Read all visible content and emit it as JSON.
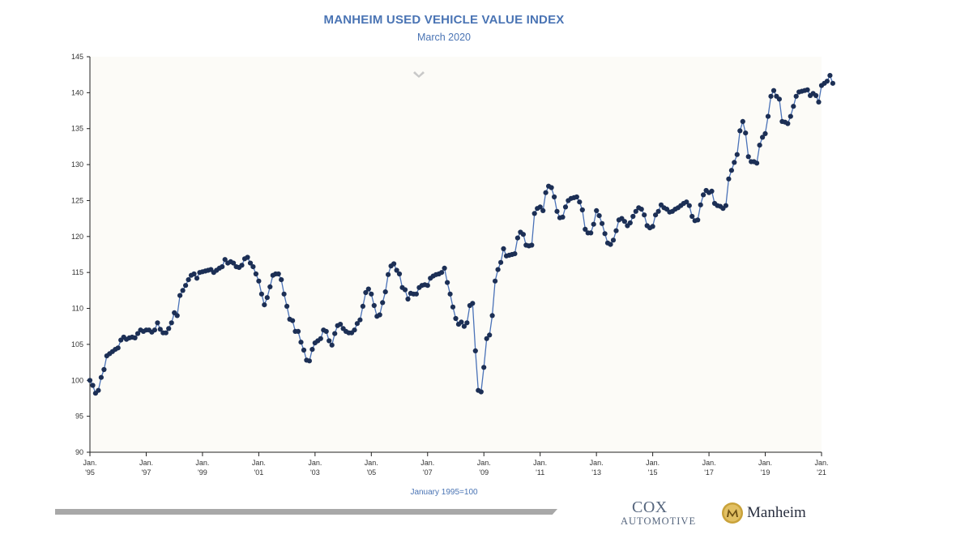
{
  "chart_data": {
    "type": "line",
    "title": "MANHEIM USED VEHICLE VALUE INDEX",
    "subtitle": "March 2020",
    "note": "January 1995=100",
    "ylim": [
      90,
      145
    ],
    "yticks": [
      90,
      95,
      100,
      105,
      110,
      115,
      120,
      125,
      130,
      135,
      140,
      145
    ],
    "xlim": [
      1995,
      2021
    ],
    "xticks": [
      {
        "year": 1995,
        "line1": "Jan.",
        "line2": "'95"
      },
      {
        "year": 1997,
        "line1": "Jan.",
        "line2": "'97"
      },
      {
        "year": 1999,
        "line1": "Jan.",
        "line2": "'99"
      },
      {
        "year": 2001,
        "line1": "Jan.",
        "line2": "'01"
      },
      {
        "year": 2003,
        "line1": "Jan.",
        "line2": "'03"
      },
      {
        "year": 2005,
        "line1": "Jan.",
        "line2": "'05"
      },
      {
        "year": 2007,
        "line1": "Jan.",
        "line2": "'07"
      },
      {
        "year": 2009,
        "line1": "Jan.",
        "line2": "'09"
      },
      {
        "year": 2011,
        "line1": "Jan.",
        "line2": "'11"
      },
      {
        "year": 2013,
        "line1": "Jan.",
        "line2": "'13"
      },
      {
        "year": 2015,
        "line1": "Jan.",
        "line2": "'15"
      },
      {
        "year": 2017,
        "line1": "Jan.",
        "line2": "'17"
      },
      {
        "year": 2019,
        "line1": "Jan.",
        "line2": "'19"
      },
      {
        "year": 2021,
        "line1": "Jan.",
        "line2": "'21"
      }
    ],
    "line_color": "#4a72b8",
    "marker_color": "#1c2f55",
    "grid": false,
    "series": [
      {
        "points": [
          [
            1995.0,
            100.0
          ],
          [
            1995.1,
            99.3
          ],
          [
            1995.2,
            98.2
          ],
          [
            1995.3,
            98.6
          ],
          [
            1995.4,
            100.4
          ],
          [
            1995.5,
            101.5
          ],
          [
            1995.6,
            103.4
          ],
          [
            1995.7,
            103.7
          ],
          [
            1995.8,
            104.0
          ],
          [
            1995.9,
            104.3
          ],
          [
            1996.0,
            104.5
          ],
          [
            1996.1,
            105.6
          ],
          [
            1996.2,
            106.0
          ],
          [
            1996.3,
            105.7
          ],
          [
            1996.4,
            105.9
          ],
          [
            1996.5,
            106.0
          ],
          [
            1996.6,
            105.9
          ],
          [
            1996.7,
            106.5
          ],
          [
            1996.8,
            107.0
          ],
          [
            1996.9,
            106.8
          ],
          [
            1997.0,
            107.0
          ],
          [
            1997.1,
            107.0
          ],
          [
            1997.2,
            106.7
          ],
          [
            1997.3,
            107.0
          ],
          [
            1997.4,
            108.0
          ],
          [
            1997.5,
            107.1
          ],
          [
            1997.6,
            106.6
          ],
          [
            1997.7,
            106.6
          ],
          [
            1997.8,
            107.2
          ],
          [
            1997.9,
            108.0
          ],
          [
            1998.0,
            109.4
          ],
          [
            1998.1,
            109.0
          ],
          [
            1998.2,
            111.8
          ],
          [
            1998.3,
            112.5
          ],
          [
            1998.4,
            113.2
          ],
          [
            1998.5,
            114.0
          ],
          [
            1998.6,
            114.6
          ],
          [
            1998.7,
            114.8
          ],
          [
            1998.8,
            114.2
          ],
          [
            1998.9,
            115.0
          ],
          [
            1999.0,
            115.1
          ],
          [
            1999.1,
            115.2
          ],
          [
            1999.2,
            115.3
          ],
          [
            1999.3,
            115.4
          ],
          [
            1999.4,
            115.0
          ],
          [
            1999.5,
            115.3
          ],
          [
            1999.6,
            115.6
          ],
          [
            1999.7,
            115.8
          ],
          [
            1999.8,
            116.8
          ],
          [
            1999.9,
            116.3
          ],
          [
            2000.0,
            116.5
          ],
          [
            2000.1,
            116.3
          ],
          [
            2000.2,
            115.8
          ],
          [
            2000.3,
            115.7
          ],
          [
            2000.4,
            116.0
          ],
          [
            2000.5,
            116.9
          ],
          [
            2000.6,
            117.1
          ],
          [
            2000.7,
            116.3
          ],
          [
            2000.8,
            115.8
          ],
          [
            2000.9,
            114.8
          ],
          [
            2001.0,
            113.8
          ],
          [
            2001.1,
            112.0
          ],
          [
            2001.2,
            110.5
          ],
          [
            2001.3,
            111.5
          ],
          [
            2001.4,
            113.0
          ],
          [
            2001.5,
            114.6
          ],
          [
            2001.6,
            114.8
          ],
          [
            2001.7,
            114.8
          ],
          [
            2001.8,
            114.0
          ],
          [
            2001.9,
            112.0
          ],
          [
            2002.0,
            110.3
          ],
          [
            2002.1,
            108.5
          ],
          [
            2002.2,
            108.3
          ],
          [
            2002.3,
            106.8
          ],
          [
            2002.4,
            106.8
          ],
          [
            2002.5,
            105.3
          ],
          [
            2002.6,
            104.2
          ],
          [
            2002.7,
            102.8
          ],
          [
            2002.8,
            102.7
          ],
          [
            2002.9,
            104.3
          ],
          [
            2003.0,
            105.2
          ],
          [
            2003.1,
            105.5
          ],
          [
            2003.2,
            105.8
          ],
          [
            2003.3,
            107.0
          ],
          [
            2003.4,
            106.8
          ],
          [
            2003.5,
            105.5
          ],
          [
            2003.6,
            104.9
          ],
          [
            2003.7,
            106.5
          ],
          [
            2003.8,
            107.6
          ],
          [
            2003.9,
            107.8
          ],
          [
            2004.0,
            107.2
          ],
          [
            2004.1,
            106.8
          ],
          [
            2004.2,
            106.6
          ],
          [
            2004.3,
            106.6
          ],
          [
            2004.4,
            107.0
          ],
          [
            2004.5,
            107.9
          ],
          [
            2004.6,
            108.4
          ],
          [
            2004.7,
            110.3
          ],
          [
            2004.8,
            112.2
          ],
          [
            2004.9,
            112.7
          ],
          [
            2005.0,
            112.0
          ],
          [
            2005.1,
            110.4
          ],
          [
            2005.2,
            108.9
          ],
          [
            2005.3,
            109.1
          ],
          [
            2005.4,
            110.8
          ],
          [
            2005.5,
            112.3
          ],
          [
            2005.6,
            114.7
          ],
          [
            2005.7,
            115.9
          ],
          [
            2005.8,
            116.2
          ],
          [
            2005.9,
            115.3
          ],
          [
            2006.0,
            114.8
          ],
          [
            2006.1,
            112.9
          ],
          [
            2006.2,
            112.6
          ],
          [
            2006.3,
            111.3
          ],
          [
            2006.4,
            112.1
          ],
          [
            2006.5,
            112.0
          ],
          [
            2006.6,
            112.0
          ],
          [
            2006.7,
            112.9
          ],
          [
            2006.8,
            113.2
          ],
          [
            2006.9,
            113.3
          ],
          [
            2007.0,
            113.2
          ],
          [
            2007.1,
            114.2
          ],
          [
            2007.2,
            114.5
          ],
          [
            2007.3,
            114.7
          ],
          [
            2007.4,
            114.8
          ],
          [
            2007.5,
            115.0
          ],
          [
            2007.6,
            115.6
          ],
          [
            2007.7,
            113.6
          ],
          [
            2007.8,
            112.0
          ],
          [
            2007.9,
            110.2
          ],
          [
            2008.0,
            108.6
          ],
          [
            2008.1,
            107.8
          ],
          [
            2008.2,
            108.1
          ],
          [
            2008.3,
            107.5
          ],
          [
            2008.4,
            108.0
          ],
          [
            2008.5,
            110.4
          ],
          [
            2008.6,
            110.7
          ],
          [
            2008.7,
            104.1
          ],
          [
            2008.8,
            98.6
          ],
          [
            2008.9,
            98.4
          ],
          [
            2009.0,
            101.8
          ],
          [
            2009.1,
            105.8
          ],
          [
            2009.2,
            106.3
          ],
          [
            2009.3,
            109.0
          ],
          [
            2009.4,
            113.8
          ],
          [
            2009.5,
            115.4
          ],
          [
            2009.6,
            116.4
          ],
          [
            2009.7,
            118.3
          ],
          [
            2009.8,
            117.3
          ],
          [
            2009.9,
            117.4
          ],
          [
            2010.0,
            117.5
          ],
          [
            2010.1,
            117.6
          ],
          [
            2010.2,
            119.8
          ],
          [
            2010.3,
            120.6
          ],
          [
            2010.4,
            120.3
          ],
          [
            2010.5,
            118.8
          ],
          [
            2010.6,
            118.7
          ],
          [
            2010.7,
            118.8
          ],
          [
            2010.8,
            123.2
          ],
          [
            2010.9,
            123.9
          ],
          [
            2011.0,
            124.1
          ],
          [
            2011.1,
            123.6
          ],
          [
            2011.2,
            126.1
          ],
          [
            2011.3,
            127.0
          ],
          [
            2011.4,
            126.8
          ],
          [
            2011.5,
            125.5
          ],
          [
            2011.6,
            123.5
          ],
          [
            2011.7,
            122.6
          ],
          [
            2011.8,
            122.7
          ],
          [
            2011.9,
            124.1
          ],
          [
            2012.0,
            125.0
          ],
          [
            2012.1,
            125.3
          ],
          [
            2012.2,
            125.4
          ],
          [
            2012.3,
            125.5
          ],
          [
            2012.4,
            124.8
          ],
          [
            2012.5,
            123.7
          ],
          [
            2012.6,
            121.0
          ],
          [
            2012.7,
            120.5
          ],
          [
            2012.8,
            120.5
          ],
          [
            2012.9,
            121.7
          ],
          [
            2013.0,
            123.6
          ],
          [
            2013.1,
            122.9
          ],
          [
            2013.2,
            121.8
          ],
          [
            2013.3,
            120.4
          ],
          [
            2013.4,
            119.1
          ],
          [
            2013.5,
            118.9
          ],
          [
            2013.6,
            119.5
          ],
          [
            2013.7,
            120.8
          ],
          [
            2013.8,
            122.3
          ],
          [
            2013.9,
            122.5
          ],
          [
            2014.0,
            122.1
          ],
          [
            2014.1,
            121.5
          ],
          [
            2014.2,
            121.9
          ],
          [
            2014.3,
            122.8
          ],
          [
            2014.4,
            123.5
          ],
          [
            2014.5,
            124.0
          ],
          [
            2014.6,
            123.8
          ],
          [
            2014.7,
            123.0
          ],
          [
            2014.8,
            121.5
          ],
          [
            2014.9,
            121.2
          ],
          [
            2015.0,
            121.4
          ],
          [
            2015.1,
            123.0
          ],
          [
            2015.2,
            123.5
          ],
          [
            2015.3,
            124.4
          ],
          [
            2015.4,
            124.0
          ],
          [
            2015.5,
            123.8
          ],
          [
            2015.6,
            123.4
          ],
          [
            2015.7,
            123.5
          ],
          [
            2015.8,
            123.8
          ],
          [
            2015.9,
            124.0
          ],
          [
            2016.0,
            124.3
          ],
          [
            2016.1,
            124.6
          ],
          [
            2016.2,
            124.8
          ],
          [
            2016.3,
            124.3
          ],
          [
            2016.4,
            122.8
          ],
          [
            2016.5,
            122.2
          ],
          [
            2016.6,
            122.3
          ],
          [
            2016.7,
            124.4
          ],
          [
            2016.8,
            125.8
          ],
          [
            2016.9,
            126.4
          ],
          [
            2017.0,
            126.1
          ],
          [
            2017.1,
            126.3
          ],
          [
            2017.2,
            124.6
          ],
          [
            2017.3,
            124.3
          ],
          [
            2017.4,
            124.2
          ],
          [
            2017.5,
            123.9
          ],
          [
            2017.6,
            124.3
          ],
          [
            2017.7,
            128.0
          ],
          [
            2017.8,
            129.2
          ],
          [
            2017.9,
            130.3
          ],
          [
            2018.0,
            131.4
          ],
          [
            2018.1,
            134.7
          ],
          [
            2018.2,
            136.0
          ],
          [
            2018.3,
            134.4
          ],
          [
            2018.4,
            131.1
          ],
          [
            2018.5,
            130.4
          ],
          [
            2018.6,
            130.4
          ],
          [
            2018.7,
            130.2
          ],
          [
            2018.8,
            132.7
          ],
          [
            2018.9,
            133.8
          ],
          [
            2019.0,
            134.3
          ],
          [
            2019.1,
            136.7
          ],
          [
            2019.2,
            139.5
          ],
          [
            2019.3,
            140.3
          ],
          [
            2019.4,
            139.5
          ],
          [
            2019.5,
            139.1
          ],
          [
            2019.6,
            136.0
          ],
          [
            2019.7,
            135.9
          ],
          [
            2019.8,
            135.7
          ],
          [
            2019.9,
            136.7
          ],
          [
            2020.0,
            138.1
          ],
          [
            2020.1,
            139.5
          ],
          [
            2020.2,
            140.1
          ],
          [
            2020.3,
            140.2
          ],
          [
            2020.4,
            140.3
          ],
          [
            2020.5,
            140.4
          ],
          [
            2020.6,
            139.6
          ],
          [
            2020.7,
            139.9
          ],
          [
            2020.8,
            139.6
          ],
          [
            2020.9,
            138.7
          ],
          [
            2021.0,
            141.0
          ],
          [
            2021.1,
            141.3
          ],
          [
            2021.2,
            141.6
          ],
          [
            2021.3,
            142.4
          ],
          [
            2021.4,
            141.3
          ]
        ]
      }
    ]
  },
  "footer": {
    "cox_line1": "COX",
    "cox_line2": "AUTOMOTIVE",
    "manheim": "Manheim"
  }
}
